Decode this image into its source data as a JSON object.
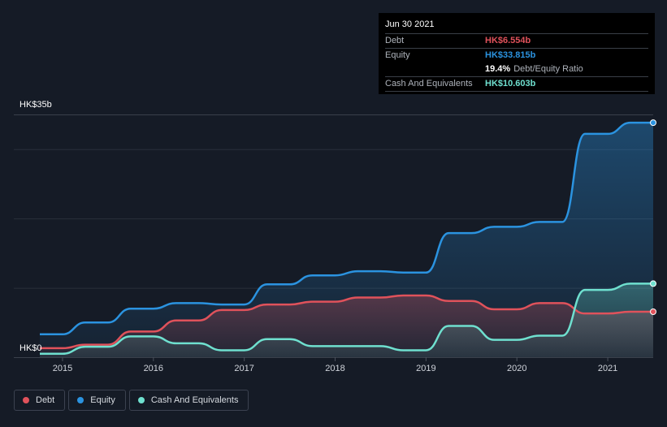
{
  "colors": {
    "debt": "#e0525b",
    "equity": "#2b93e0",
    "cash": "#6fe0cf",
    "background": "#151b26",
    "grid": "#2a303b"
  },
  "tooltip": {
    "date": "Jun 30 2021",
    "debt_label": "Debt",
    "debt_value": "HK$6.554b",
    "equity_label": "Equity",
    "equity_value": "HK$33.815b",
    "ratio_value": "19.4%",
    "ratio_label": "Debt/Equity Ratio",
    "cash_label": "Cash And Equivalents",
    "cash_value": "HK$10.603b"
  },
  "legend": {
    "debt": "Debt",
    "equity": "Equity",
    "cash": "Cash And Equivalents"
  },
  "chart_data": {
    "type": "area",
    "y_tick_labels": [
      "HK$35b",
      "HK$0"
    ],
    "ylim": [
      0,
      35
    ],
    "xlim": [
      2014.75,
      2021.5
    ],
    "x_tick_labels": [
      "2015",
      "2016",
      "2017",
      "2018",
      "2019",
      "2020",
      "2021"
    ],
    "x_tick_values": [
      2015,
      2016,
      2017,
      2018,
      2019,
      2020,
      2021
    ],
    "legend_position": "bottom-left",
    "series": [
      {
        "name": "Equity",
        "color_key": "equity",
        "points": [
          [
            2014.75,
            3.3
          ],
          [
            2015.0,
            3.3
          ],
          [
            2015.25,
            5.0
          ],
          [
            2015.5,
            5.0
          ],
          [
            2015.75,
            7.0
          ],
          [
            2016.0,
            7.0
          ],
          [
            2016.25,
            7.8
          ],
          [
            2016.5,
            7.8
          ],
          [
            2016.75,
            7.6
          ],
          [
            2017.0,
            7.6
          ],
          [
            2017.25,
            10.5
          ],
          [
            2017.5,
            10.5
          ],
          [
            2017.75,
            11.8
          ],
          [
            2018.0,
            11.8
          ],
          [
            2018.25,
            12.4
          ],
          [
            2018.5,
            12.4
          ],
          [
            2018.75,
            12.2
          ],
          [
            2019.0,
            12.2
          ],
          [
            2019.25,
            17.9
          ],
          [
            2019.5,
            17.9
          ],
          [
            2019.75,
            18.8
          ],
          [
            2020.0,
            18.8
          ],
          [
            2020.25,
            19.5
          ],
          [
            2020.5,
            19.5
          ],
          [
            2020.75,
            32.2
          ],
          [
            2021.0,
            32.2
          ],
          [
            2021.25,
            33.815
          ],
          [
            2021.5,
            33.815
          ]
        ]
      },
      {
        "name": "Debt",
        "color_key": "debt",
        "points": [
          [
            2014.75,
            1.3
          ],
          [
            2015.0,
            1.3
          ],
          [
            2015.25,
            1.8
          ],
          [
            2015.5,
            1.8
          ],
          [
            2015.75,
            3.7
          ],
          [
            2016.0,
            3.7
          ],
          [
            2016.25,
            5.3
          ],
          [
            2016.5,
            5.3
          ],
          [
            2016.75,
            6.8
          ],
          [
            2017.0,
            6.8
          ],
          [
            2017.25,
            7.6
          ],
          [
            2017.5,
            7.6
          ],
          [
            2017.75,
            8.0
          ],
          [
            2018.0,
            8.0
          ],
          [
            2018.25,
            8.6
          ],
          [
            2018.5,
            8.6
          ],
          [
            2018.75,
            8.9
          ],
          [
            2019.0,
            8.9
          ],
          [
            2019.25,
            8.1
          ],
          [
            2019.5,
            8.1
          ],
          [
            2019.75,
            6.9
          ],
          [
            2020.0,
            6.9
          ],
          [
            2020.25,
            7.8
          ],
          [
            2020.5,
            7.8
          ],
          [
            2020.75,
            6.3
          ],
          [
            2021.0,
            6.3
          ],
          [
            2021.25,
            6.554
          ],
          [
            2021.5,
            6.554
          ]
        ]
      },
      {
        "name": "Cash And Equivalents",
        "color_key": "cash",
        "points": [
          [
            2014.75,
            0.5
          ],
          [
            2015.0,
            0.5
          ],
          [
            2015.25,
            1.5
          ],
          [
            2015.5,
            1.5
          ],
          [
            2015.75,
            3.0
          ],
          [
            2016.0,
            3.0
          ],
          [
            2016.25,
            2.0
          ],
          [
            2016.5,
            2.0
          ],
          [
            2016.75,
            1.0
          ],
          [
            2017.0,
            1.0
          ],
          [
            2017.25,
            2.6
          ],
          [
            2017.5,
            2.6
          ],
          [
            2017.75,
            1.6
          ],
          [
            2018.0,
            1.6
          ],
          [
            2018.25,
            1.6
          ],
          [
            2018.5,
            1.6
          ],
          [
            2018.75,
            1.0
          ],
          [
            2019.0,
            1.0
          ],
          [
            2019.25,
            4.5
          ],
          [
            2019.5,
            4.5
          ],
          [
            2019.75,
            2.5
          ],
          [
            2020.0,
            2.5
          ],
          [
            2020.25,
            3.1
          ],
          [
            2020.5,
            3.1
          ],
          [
            2020.75,
            9.7
          ],
          [
            2021.0,
            9.7
          ],
          [
            2021.25,
            10.603
          ],
          [
            2021.5,
            10.603
          ]
        ]
      }
    ]
  }
}
